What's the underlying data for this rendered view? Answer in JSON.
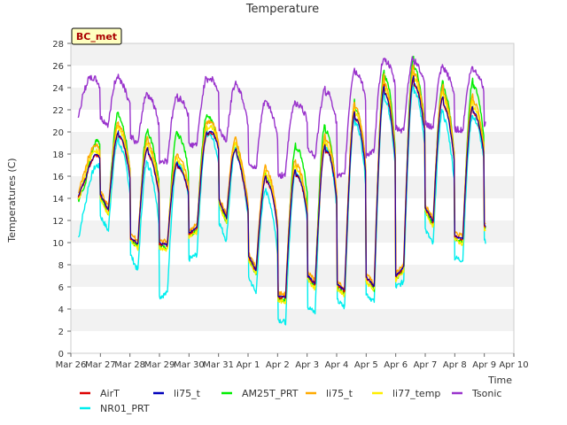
{
  "chart_data": {
    "type": "line",
    "title": "Temperature",
    "xlabel": "Time",
    "ylabel": "Temperatures (C)",
    "ylim": [
      0,
      28
    ],
    "xlim": [
      0,
      15
    ],
    "grid": "horizontal bands",
    "legend_position": "bottom",
    "station_label": "BC_met",
    "x_ticks": [
      "Mar 26",
      "Mar 27",
      "Mar 28",
      "Mar 29",
      "Mar 30",
      "Mar 31",
      "Apr 1",
      "Apr 2",
      "Apr 3",
      "Apr 4",
      "Apr 5",
      "Apr 6",
      "Apr 7",
      "Apr 8",
      "Apr 9",
      "Apr 10"
    ],
    "y_ticks": [
      0,
      2,
      4,
      6,
      8,
      10,
      12,
      14,
      16,
      18,
      20,
      22,
      24,
      26,
      28
    ],
    "x_unit": "days since Mar 26",
    "daily": {
      "days": [
        0.5,
        1,
        2,
        3,
        4,
        5,
        6,
        7,
        8,
        9,
        10,
        11,
        12,
        13,
        14
      ],
      "air_min": [
        14.2,
        14.0,
        10.0,
        9.5,
        10.5,
        13.5,
        8.5,
        4.5,
        6.5,
        5.5,
        6.0,
        6.0,
        12.5,
        10.0,
        11.0
      ],
      "air_max": [
        16.0,
        20.0,
        20.0,
        17.5,
        17.0,
        22.0,
        16.0,
        16.0,
        17.0,
        20.0,
        23.0,
        25.0,
        25.0,
        22.0,
        22.5
      ],
      "nr01_min": [
        10.5,
        12.0,
        8.5,
        4.5,
        8.0,
        11.5,
        6.5,
        2.5,
        3.5,
        4.0,
        4.5,
        5.0,
        10.5,
        8.0,
        9.5
      ],
      "nr01_max": [
        14.0,
        20.0,
        19.0,
        16.5,
        18.0,
        21.5,
        16.5,
        14.0,
        18.5,
        20.0,
        22.5,
        24.5,
        24.5,
        20.5,
        22.5
      ],
      "am25_max": [
        15.5,
        22.5,
        21.5,
        19.5,
        20.5,
        22.5,
        16.5,
        16.5,
        20.5,
        21.0,
        24.0,
        27.0,
        26.5,
        23.5,
        25.5
      ],
      "tsonic_min": [
        21.5,
        21.0,
        19.5,
        17.0,
        18.5,
        20.0,
        17.0,
        15.5,
        18.5,
        15.5,
        17.5,
        20.0,
        20.5,
        20.0,
        20.5
      ],
      "tsonic_max": [
        24.5,
        26.0,
        24.5,
        23.0,
        23.5,
        26.0,
        23.5,
        22.5,
        23.0,
        24.5,
        26.5,
        27.0,
        26.5,
        25.5,
        26.0
      ]
    },
    "series": [
      {
        "name": "AirT",
        "color": "#dd0000"
      },
      {
        "name": "li75_t",
        "color": "#0000bb"
      },
      {
        "name": "AM25T_PRT",
        "color": "#00ee00"
      },
      {
        "name": "li75_t",
        "color": "#ffaa00"
      },
      {
        "name": "li77_temp",
        "color": "#ffee00"
      },
      {
        "name": "Tsonic",
        "color": "#9933cc"
      },
      {
        "name": "NR01_PRT",
        "color": "#00eeee"
      }
    ]
  }
}
